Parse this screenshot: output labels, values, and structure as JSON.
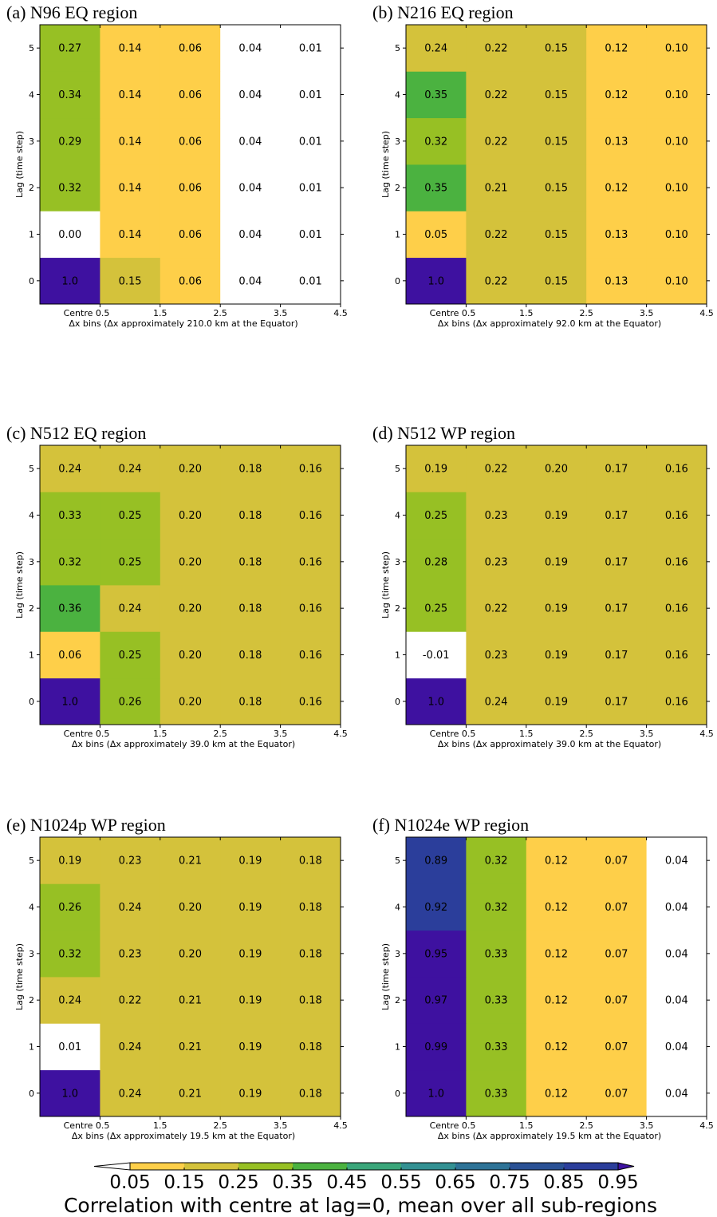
{
  "colors": {
    "bins": [
      "#ffffff",
      "#fecf49",
      "#d4c23b",
      "#97c024",
      "#4bb240",
      "#3aa67a",
      "#339193",
      "#2e7397",
      "#2a5195",
      "#2b3e9b",
      "#3e11a0"
    ],
    "boundaries": [
      0.05,
      0.15,
      0.25,
      0.35,
      0.45,
      0.55,
      0.65,
      0.75,
      0.85,
      0.95
    ],
    "over": "#3e11a0"
  },
  "colorbar": {
    "ticks": [
      "0.05",
      "0.15",
      "0.25",
      "0.35",
      "0.45",
      "0.55",
      "0.65",
      "0.75",
      "0.85",
      "0.95"
    ],
    "label": "Correlation with centre at lag=0, mean over all sub-regions"
  },
  "chart_data": [
    {
      "type": "heatmap",
      "title": "(a) N96 EQ region",
      "ylabel": "Lag (time step)",
      "xlabel": "Δx bins (Δx approximately 210.0 km at the Equator)",
      "x_ticks": [
        "Centre 0.5",
        "1.5",
        "2.5",
        "3.5",
        "4.5"
      ],
      "y_ticks": [
        "0",
        "1",
        "2",
        "3",
        "4",
        "5"
      ],
      "values": [
        [
          "1.0",
          "0.15",
          "0.06",
          "0.04",
          "0.01"
        ],
        [
          "0.00",
          "0.14",
          "0.06",
          "0.04",
          "0.01"
        ],
        [
          "0.32",
          "0.14",
          "0.06",
          "0.04",
          "0.01"
        ],
        [
          "0.29",
          "0.14",
          "0.06",
          "0.04",
          "0.01"
        ],
        [
          "0.34",
          "0.14",
          "0.06",
          "0.04",
          "0.01"
        ],
        [
          "0.27",
          "0.14",
          "0.06",
          "0.04",
          "0.01"
        ]
      ]
    },
    {
      "type": "heatmap",
      "title": "(b) N216 EQ region",
      "ylabel": "Lag (time step)",
      "xlabel": "Δx bins (Δx approximately 92.0 km at the Equator)",
      "x_ticks": [
        "Centre 0.5",
        "1.5",
        "2.5",
        "3.5",
        "4.5"
      ],
      "y_ticks": [
        "0",
        "1",
        "2",
        "3",
        "4",
        "5"
      ],
      "values": [
        [
          "1.0",
          "0.22",
          "0.15",
          "0.13",
          "0.10"
        ],
        [
          "0.05",
          "0.22",
          "0.15",
          "0.13",
          "0.10"
        ],
        [
          "0.35",
          "0.21",
          "0.15",
          "0.12",
          "0.10"
        ],
        [
          "0.32",
          "0.22",
          "0.15",
          "0.13",
          "0.10"
        ],
        [
          "0.35",
          "0.22",
          "0.15",
          "0.12",
          "0.10"
        ],
        [
          "0.24",
          "0.22",
          "0.15",
          "0.12",
          "0.10"
        ]
      ]
    },
    {
      "type": "heatmap",
      "title": "(c) N512 EQ region",
      "ylabel": "Lag (time step)",
      "xlabel": "Δx bins (Δx approximately 39.0 km at the Equator)",
      "x_ticks": [
        "Centre 0.5",
        "1.5",
        "2.5",
        "3.5",
        "4.5"
      ],
      "y_ticks": [
        "0",
        "1",
        "2",
        "3",
        "4",
        "5"
      ],
      "values": [
        [
          "1.0",
          "0.26",
          "0.20",
          "0.18",
          "0.16"
        ],
        [
          "0.06",
          "0.25",
          "0.20",
          "0.18",
          "0.16"
        ],
        [
          "0.36",
          "0.24",
          "0.20",
          "0.18",
          "0.16"
        ],
        [
          "0.32",
          "0.25",
          "0.20",
          "0.18",
          "0.16"
        ],
        [
          "0.33",
          "0.25",
          "0.20",
          "0.18",
          "0.16"
        ],
        [
          "0.24",
          "0.24",
          "0.20",
          "0.18",
          "0.16"
        ]
      ]
    },
    {
      "type": "heatmap",
      "title": "(d) N512 WP region",
      "ylabel": "Lag (time step)",
      "xlabel": "Δx bins (Δx approximately 39.0 km at the Equator)",
      "x_ticks": [
        "Centre 0.5",
        "1.5",
        "2.5",
        "3.5",
        "4.5"
      ],
      "y_ticks": [
        "0",
        "1",
        "2",
        "3",
        "4",
        "5"
      ],
      "values": [
        [
          "1.0",
          "0.24",
          "0.19",
          "0.17",
          "0.16"
        ],
        [
          "-0.01",
          "0.23",
          "0.19",
          "0.17",
          "0.16"
        ],
        [
          "0.25",
          "0.22",
          "0.19",
          "0.17",
          "0.16"
        ],
        [
          "0.28",
          "0.23",
          "0.19",
          "0.17",
          "0.16"
        ],
        [
          "0.25",
          "0.23",
          "0.19",
          "0.17",
          "0.16"
        ],
        [
          "0.19",
          "0.22",
          "0.20",
          "0.17",
          "0.16"
        ]
      ]
    },
    {
      "type": "heatmap",
      "title": "(e) N1024p WP region",
      "ylabel": "Lag (time step)",
      "xlabel": "Δx bins (Δx approximately 19.5 km at the Equator)",
      "x_ticks": [
        "Centre 0.5",
        "1.5",
        "2.5",
        "3.5",
        "4.5"
      ],
      "y_ticks": [
        "0",
        "1",
        "2",
        "3",
        "4",
        "5"
      ],
      "values": [
        [
          "1.0",
          "0.24",
          "0.21",
          "0.19",
          "0.18"
        ],
        [
          "0.01",
          "0.24",
          "0.21",
          "0.19",
          "0.18"
        ],
        [
          "0.24",
          "0.22",
          "0.21",
          "0.19",
          "0.18"
        ],
        [
          "0.32",
          "0.23",
          "0.20",
          "0.19",
          "0.18"
        ],
        [
          "0.26",
          "0.24",
          "0.20",
          "0.19",
          "0.18"
        ],
        [
          "0.19",
          "0.23",
          "0.21",
          "0.19",
          "0.18"
        ]
      ]
    },
    {
      "type": "heatmap",
      "title": "(f) N1024e WP region",
      "ylabel": "Lag (time step)",
      "xlabel": "Δx bins (Δx approximately 19.5 km at the Equator)",
      "x_ticks": [
        "Centre 0.5",
        "1.5",
        "2.5",
        "3.5",
        "4.5"
      ],
      "y_ticks": [
        "0",
        "1",
        "2",
        "3",
        "4",
        "5"
      ],
      "values": [
        [
          "1.0",
          "0.33",
          "0.12",
          "0.07",
          "0.04"
        ],
        [
          "0.99",
          "0.33",
          "0.12",
          "0.07",
          "0.04"
        ],
        [
          "0.97",
          "0.33",
          "0.12",
          "0.07",
          "0.04"
        ],
        [
          "0.95",
          "0.33",
          "0.12",
          "0.07",
          "0.04"
        ],
        [
          "0.92",
          "0.32",
          "0.12",
          "0.07",
          "0.04"
        ],
        [
          "0.89",
          "0.32",
          "0.12",
          "0.07",
          "0.04"
        ]
      ]
    }
  ]
}
